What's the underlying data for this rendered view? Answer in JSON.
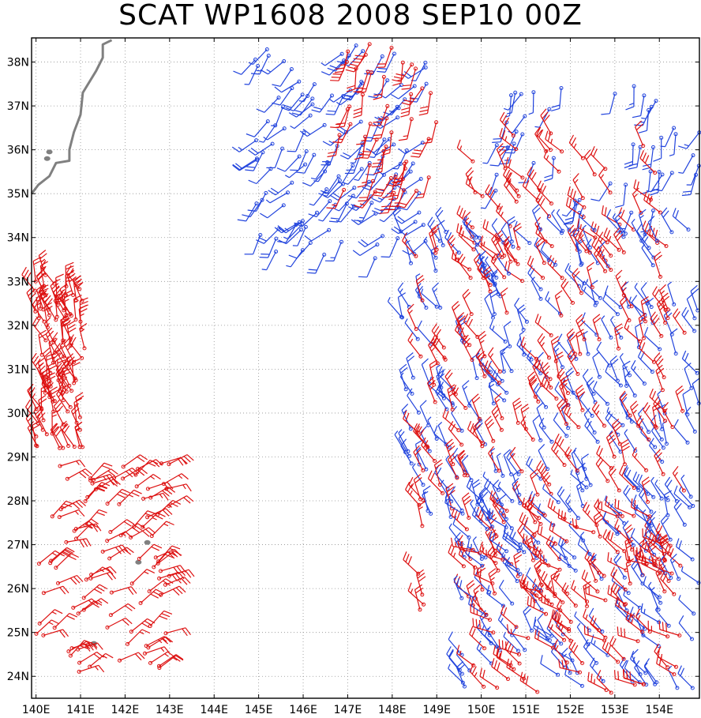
{
  "title": "SCAT WP1608 2008 SEP10 00Z",
  "map": {
    "lon_range": [
      139.9,
      154.9
    ],
    "lat_range": [
      23.5,
      38.55
    ],
    "lat_ticks": [
      {
        "value": 38,
        "label": "38N"
      },
      {
        "value": 37,
        "label": "37N"
      },
      {
        "value": 36,
        "label": "36N"
      },
      {
        "value": 35,
        "label": "35N"
      },
      {
        "value": 34,
        "label": "34N"
      },
      {
        "value": 33,
        "label": "33N"
      },
      {
        "value": 32,
        "label": "32N"
      },
      {
        "value": 31,
        "label": "31N"
      },
      {
        "value": 30,
        "label": "30N"
      },
      {
        "value": 29,
        "label": "29N"
      },
      {
        "value": 28,
        "label": "28N"
      },
      {
        "value": 27,
        "label": "27N"
      },
      {
        "value": 26,
        "label": "26N"
      },
      {
        "value": 25,
        "label": "25N"
      },
      {
        "value": 24,
        "label": "24N"
      }
    ],
    "lon_ticks": [
      {
        "value": 140,
        "label": "140E"
      },
      {
        "value": 141,
        "label": "141E"
      },
      {
        "value": 142,
        "label": "142E"
      },
      {
        "value": 143,
        "label": "143E"
      },
      {
        "value": 144,
        "label": "144E"
      },
      {
        "value": 145,
        "label": "145E"
      },
      {
        "value": 146,
        "label": "146E"
      },
      {
        "value": 147,
        "label": "147E"
      },
      {
        "value": 148,
        "label": "148E"
      },
      {
        "value": 149,
        "label": "149E"
      },
      {
        "value": 150,
        "label": "150E"
      },
      {
        "value": 151,
        "label": "151E"
      },
      {
        "value": 152,
        "label": "152E"
      },
      {
        "value": 153,
        "label": "153E"
      },
      {
        "value": 154,
        "label": "154E"
      }
    ],
    "colors": {
      "red_barb": "#dd1111",
      "blue_barb": "#2244dd",
      "coast": "#808080",
      "grid": "#909090"
    },
    "coastline": [
      [
        141.7,
        38.5
      ],
      [
        141.5,
        38.4
      ],
      [
        141.5,
        38.1
      ],
      [
        141.35,
        37.8
      ],
      [
        141.05,
        37.3
      ],
      [
        141.0,
        36.8
      ],
      [
        140.85,
        36.4
      ],
      [
        140.75,
        36.0
      ],
      [
        140.75,
        35.75
      ],
      [
        140.45,
        35.7
      ],
      [
        140.3,
        35.4
      ],
      [
        140.05,
        35.2
      ],
      [
        139.9,
        35.0
      ]
    ],
    "islands": [
      [
        140.3,
        35.95
      ],
      [
        140.25,
        35.8
      ],
      [
        142.5,
        27.05
      ],
      [
        142.3,
        26.6
      ],
      [
        141.3,
        24.75
      ]
    ],
    "barb_regions": [
      {
        "color": "red",
        "lon": [
          139.95,
          141.1
        ],
        "lat": [
          29.0,
          33.2
        ],
        "dir": 340,
        "barbs": 2,
        "count": 95,
        "seed": 11
      },
      {
        "color": "red",
        "lon": [
          139.95,
          143.0
        ],
        "lat": [
          24.1,
          28.9
        ],
        "dir": 60,
        "barbs": 2,
        "count": 95,
        "seed": 12
      },
      {
        "color": "blue",
        "lon": [
          144.9,
          148.8
        ],
        "lat": [
          33.5,
          38.4
        ],
        "dir": 220,
        "barbs": 1,
        "count": 130,
        "seed": 13
      },
      {
        "color": "red",
        "lon": [
          146.8,
          149.0
        ],
        "lat": [
          35.0,
          38.5
        ],
        "dir": 200,
        "barbs": 2,
        "count": 45,
        "seed": 14
      },
      {
        "color": "blue",
        "lon": [
          150.3,
          154.9
        ],
        "lat": [
          34.5,
          37.6
        ],
        "dir": 200,
        "barbs": 1,
        "count": 45,
        "seed": 15
      },
      {
        "color": "red",
        "lon": [
          149.6,
          154.2
        ],
        "lat": [
          33.0,
          36.4
        ],
        "dir": 320,
        "barbs": 2,
        "count": 55,
        "seed": 16
      },
      {
        "color": "blue",
        "lon": [
          148.1,
          154.9
        ],
        "lat": [
          27.5,
          34.2
        ],
        "dir": 330,
        "barbs": 1,
        "count": 230,
        "seed": 17
      },
      {
        "color": "red",
        "lon": [
          148.5,
          154.6
        ],
        "lat": [
          25.5,
          33.8
        ],
        "dir": 330,
        "barbs": 2,
        "count": 200,
        "seed": 18
      },
      {
        "color": "blue",
        "lon": [
          149.5,
          154.9
        ],
        "lat": [
          23.6,
          28.0
        ],
        "dir": 320,
        "barbs": 1,
        "count": 130,
        "seed": 19
      },
      {
        "color": "red",
        "lon": [
          149.8,
          154.5
        ],
        "lat": [
          23.6,
          27.8
        ],
        "dir": 300,
        "barbs": 2,
        "count": 95,
        "seed": 20
      }
    ]
  }
}
